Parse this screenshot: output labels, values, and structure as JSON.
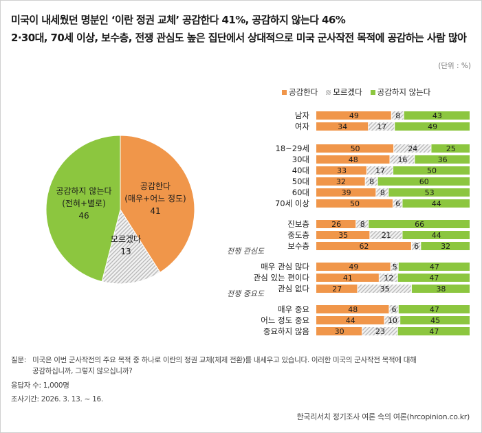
{
  "title_line1": "미국이 내세웠던 명분인 ‘이란 정권 교체’ 공감한다 41%, 공감하지 않는다 46%",
  "title_line2": "2·30대, 70세 이상, 보수층, 전쟁 관심도 높은 집단에서 상대적으로 미국 군사작전 목적에 공감하는 사람 많아",
  "unit": "(단위 : %)",
  "legend": [
    {
      "label": "공감한다",
      "color": "#f0964a"
    },
    {
      "label": "모르겠다",
      "color": "#c8c8c8"
    },
    {
      "label": "공감하지 않는다",
      "color": "#8cc63f"
    }
  ],
  "chart_data": [
    {
      "type": "pie",
      "slices": [
        {
          "name": "공감한다",
          "sub": "(매우+어느 정도)",
          "value": 41,
          "color": "#f0964a"
        },
        {
          "name": "모르겠다",
          "sub": "",
          "value": 13,
          "color": "#e6e6e6"
        },
        {
          "name": "공감하지 않는다",
          "sub": "(전혀+별로)",
          "value": 46,
          "color": "#8cc63f"
        }
      ]
    },
    {
      "type": "bar",
      "stacked": true,
      "orientation": "horizontal",
      "series_names": [
        "공감한다",
        "모르겠다",
        "공감하지 않는다"
      ],
      "rows": [
        {
          "label": "남자",
          "values": [
            49,
            8,
            43
          ]
        },
        {
          "label": "여자",
          "values": [
            34,
            17,
            49
          ]
        },
        {
          "label": "18~29세",
          "values": [
            50,
            24,
            25
          ]
        },
        {
          "label": "30대",
          "values": [
            48,
            16,
            36
          ]
        },
        {
          "label": "40대",
          "values": [
            33,
            17,
            50
          ]
        },
        {
          "label": "50대",
          "values": [
            32,
            8,
            60
          ]
        },
        {
          "label": "60대",
          "values": [
            39,
            8,
            53
          ]
        },
        {
          "label": "70세 이상",
          "values": [
            50,
            6,
            44
          ]
        },
        {
          "label": "진보층",
          "values": [
            26,
            8,
            66
          ]
        },
        {
          "label": "중도층",
          "values": [
            35,
            21,
            44
          ]
        },
        {
          "label": "보수층",
          "values": [
            62,
            6,
            32
          ]
        },
        {
          "label": "매우 관심 많다",
          "values": [
            49,
            5,
            47
          ]
        },
        {
          "label": "관심 있는 편이다",
          "values": [
            41,
            12,
            47
          ]
        },
        {
          "label": "관심 없다",
          "values": [
            27,
            35,
            38
          ]
        },
        {
          "label": "매우 중요",
          "values": [
            48,
            6,
            47
          ]
        },
        {
          "label": "어느 정도 중요",
          "values": [
            44,
            10,
            45
          ]
        },
        {
          "label": "중요하지 않음",
          "values": [
            30,
            23,
            47
          ]
        }
      ],
      "group_headers": [
        "전쟁 관심도",
        "전쟁 중요도"
      ]
    }
  ],
  "footnotes": {
    "question_label": "질문:",
    "question_line1": "미국은 이번 군사작전의 주요 목적 중 하나로 이란의 정권 교체(체제 전환)를 내세우고 있습니다. 이러한 미국의 군사작전 목적에 대해",
    "question_line2": "공감하십니까, 그렇지 않으십니까?",
    "respondents": "응답자 수: 1,000명",
    "period": "조사기간: 2026. 3. 13. ~ 16."
  },
  "source": "한국리서치 정기조사 여론 속의 여론(hrcopinion.co.kr)"
}
